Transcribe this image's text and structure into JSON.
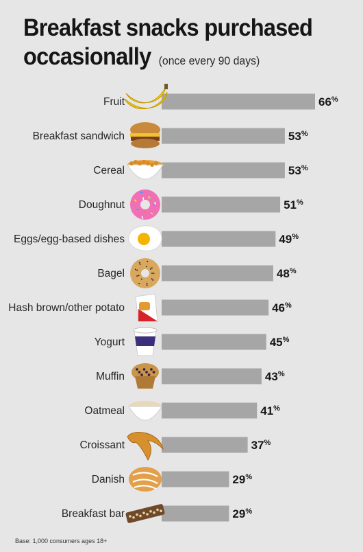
{
  "header": {
    "title_line1": "Breakfast snacks purchased",
    "title_line2": "occasionally",
    "subtitle": "(once every 90 days)"
  },
  "footnote": "Base: 1,000 consumers ages 18+",
  "colors": {
    "bar": "#a6a6a6",
    "background": "#e6e6e6"
  },
  "chart_data": {
    "type": "bar",
    "orientation": "horizontal",
    "categories": [
      "Fruit",
      "Breakfast sandwich",
      "Cereal",
      "Doughnut",
      "Eggs/egg-based dishes",
      "Bagel",
      "Hash brown/other potato",
      "Yogurt",
      "Muffin",
      "Oatmeal",
      "Croissant",
      "Danish",
      "Breakfast bar"
    ],
    "values": [
      66,
      53,
      53,
      51,
      49,
      48,
      46,
      45,
      43,
      41,
      37,
      29,
      29
    ],
    "value_suffix": "%",
    "icons": [
      "banana-icon",
      "sandwich-icon",
      "cereal-bowl-icon",
      "doughnut-icon",
      "fried-egg-icon",
      "bagel-icon",
      "hash-brown-icon",
      "yogurt-cup-icon",
      "muffin-icon",
      "oatmeal-bowl-icon",
      "croissant-icon",
      "danish-icon",
      "breakfast-bar-icon"
    ],
    "title": "Breakfast snacks purchased occasionally",
    "subtitle": "(once every 90 days)",
    "xlim": [
      0,
      66
    ],
    "grid": false,
    "legend": "none"
  }
}
